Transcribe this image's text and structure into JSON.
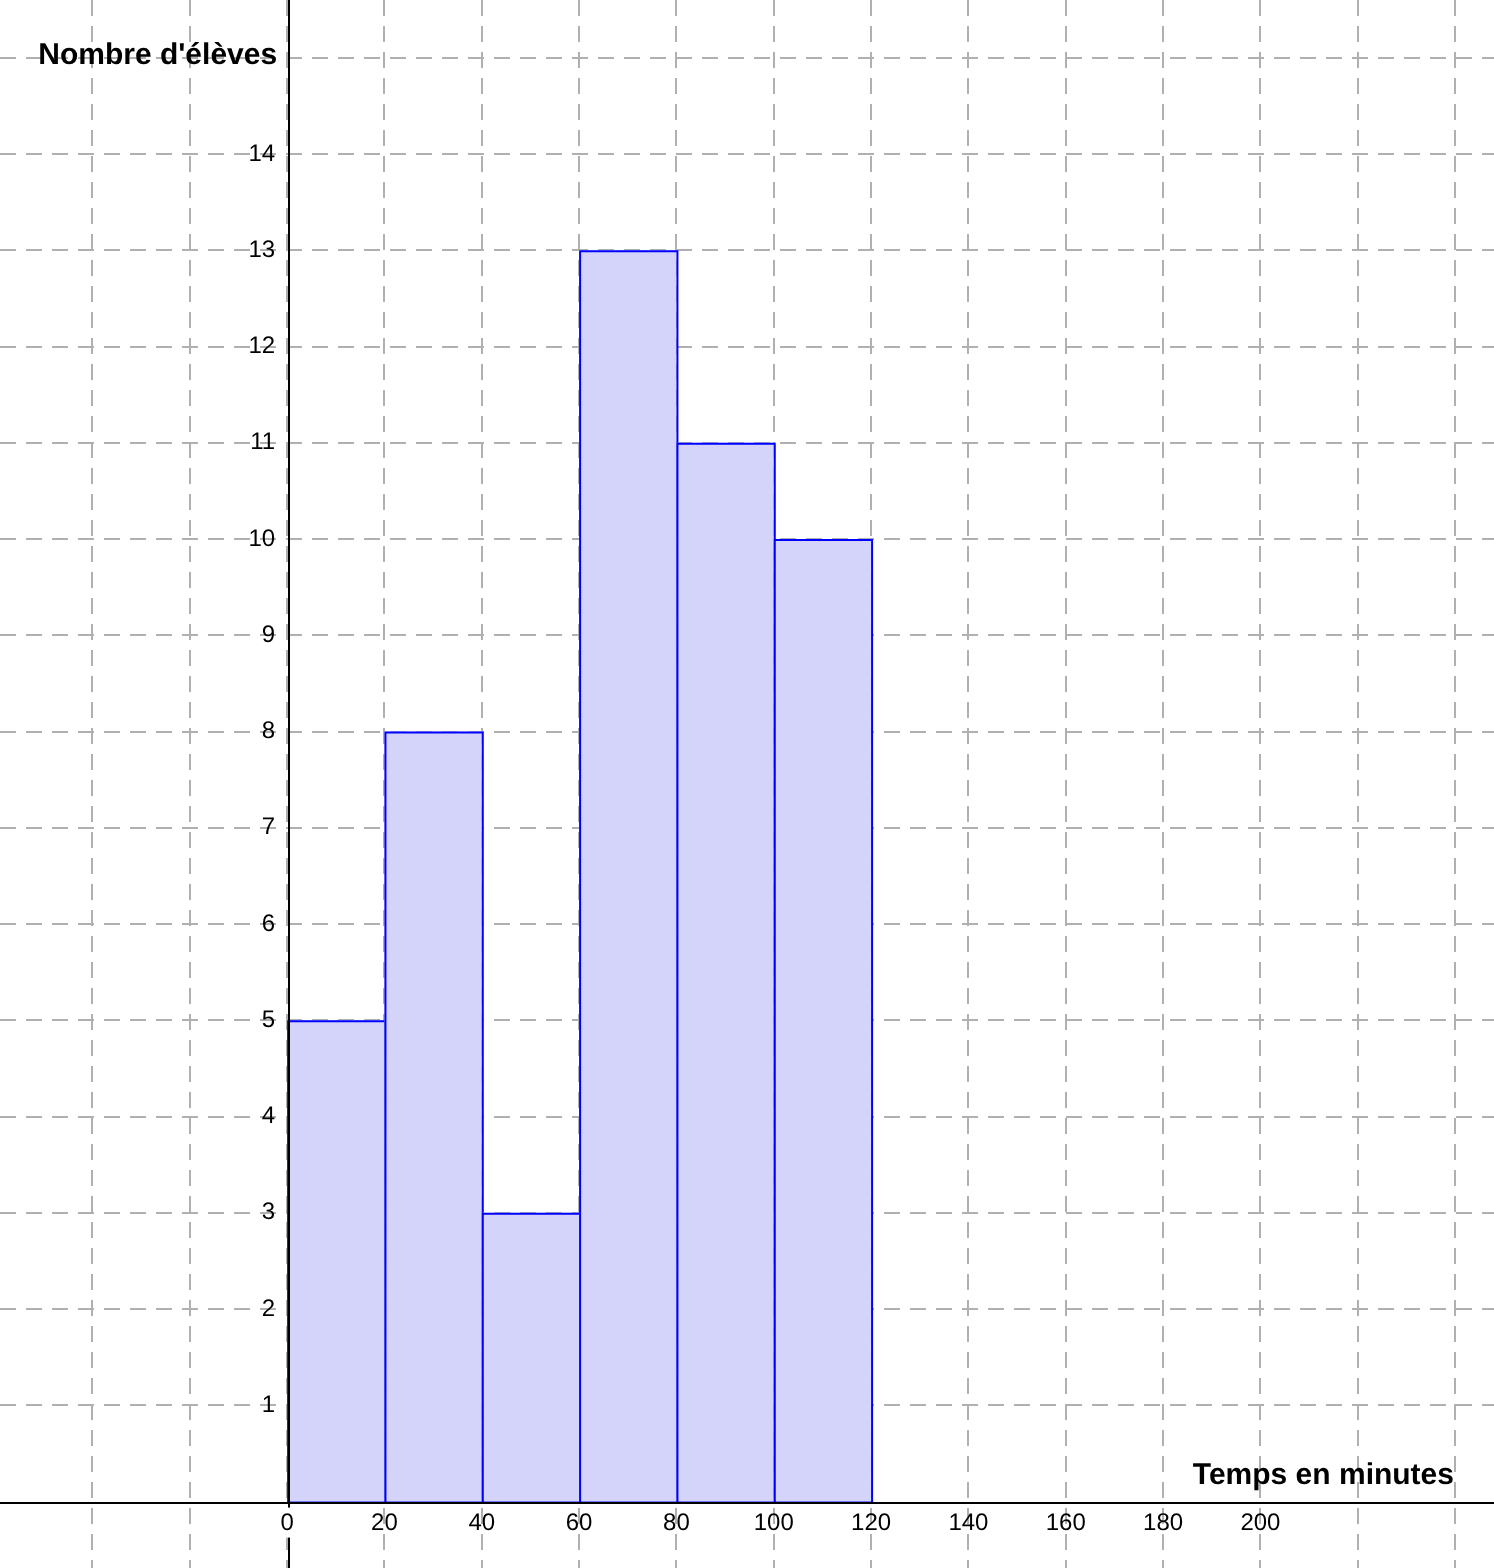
{
  "chart_data": {
    "type": "histogram",
    "xlabel": "Temps en minutes",
    "ylabel": "Nombre d'élèves",
    "bins": [
      0,
      20,
      40,
      60,
      80,
      100,
      120
    ],
    "values": [
      5,
      8,
      3,
      13,
      11,
      10
    ],
    "color": "#d4d4fa",
    "xlim": [
      -59,
      248
    ],
    "ylim": [
      -0.69,
      15.6
    ],
    "xticks": [
      {
        "value": -40,
        "label": null
      },
      {
        "value": -20,
        "label": null
      },
      0,
      20,
      40,
      60,
      80,
      100,
      120,
      140,
      160,
      180,
      200,
      {
        "value": 220,
        "label": null
      },
      {
        "value": 240,
        "label": null
      }
    ],
    "yticks": [
      1,
      2,
      3,
      4,
      5,
      6,
      7,
      8,
      9,
      10,
      11,
      12,
      13,
      14,
      {
        "value": 15,
        "label": null
      }
    ],
    "grid": true
  }
}
